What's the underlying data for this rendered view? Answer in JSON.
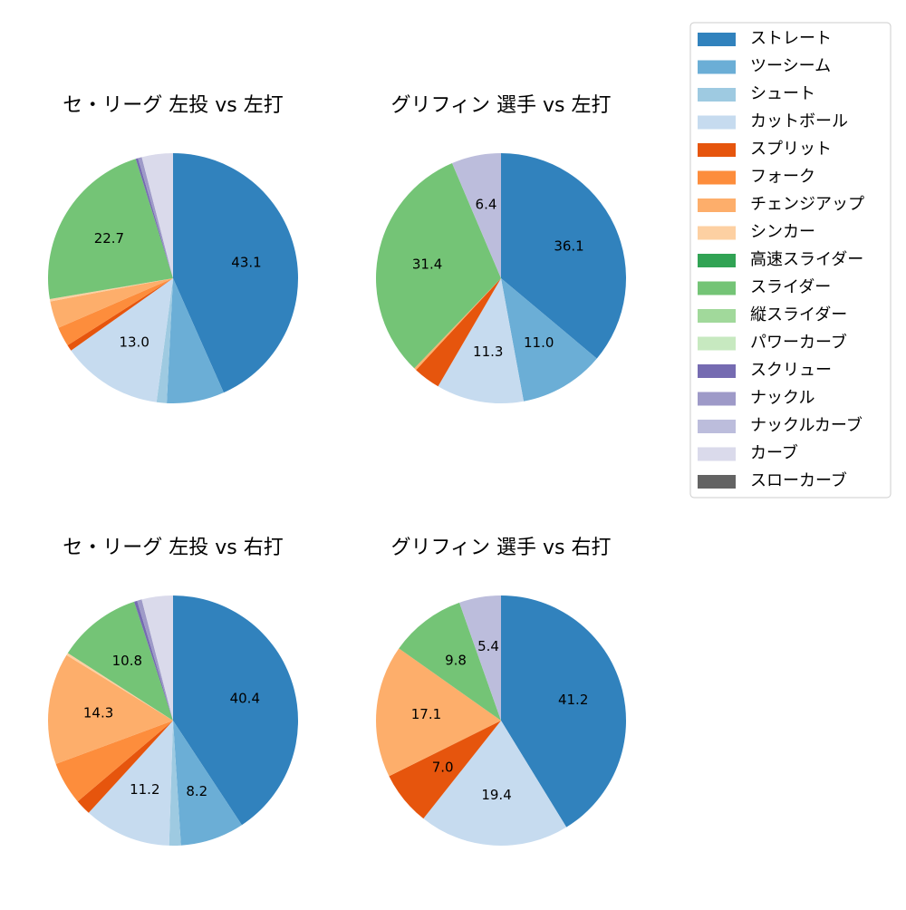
{
  "chart_data": [
    {
      "type": "pie",
      "title": "セ・リーグ 左投 vs 左打",
      "categories": [
        "ストレート",
        "ツーシーム",
        "シュート",
        "カットボール",
        "スプリット",
        "フォーク",
        "チェンジアップ",
        "シンカー",
        "高速スライダー",
        "スライダー",
        "縦スライダー",
        "パワーカーブ",
        "スクリュー",
        "ナックル",
        "ナックルカーブ",
        "カーブ",
        "スローカーブ"
      ],
      "colors": [
        "#3182bd",
        "#6baed6",
        "#9ecae1",
        "#c6dbef",
        "#e6550d",
        "#fd8d3c",
        "#fdae6b",
        "#fdd0a2",
        "#31a354",
        "#74c476",
        "#a1d99b",
        "#c7e9c0",
        "#756bb1",
        "#9e9ac8",
        "#bcbddc",
        "#dadaeb",
        "#636363"
      ],
      "values": [
        43.1,
        7.4,
        1.3,
        13.0,
        0.8,
        2.5,
        3.5,
        0.3,
        0,
        22.7,
        0,
        0,
        0.3,
        0.5,
        0,
        4.0,
        0
      ],
      "value_labels": [
        "43.1",
        null,
        null,
        "13.0",
        null,
        null,
        null,
        null,
        null,
        "22.7",
        null,
        null,
        null,
        null,
        null,
        null,
        null
      ]
    },
    {
      "type": "pie",
      "title": "グリフィン 選手 vs 左打",
      "categories": [
        "ストレート",
        "ツーシーム",
        "シュート",
        "カットボール",
        "スプリット",
        "フォーク",
        "チェンジアップ",
        "シンカー",
        "高速スライダー",
        "スライダー",
        "縦スライダー",
        "パワーカーブ",
        "スクリュー",
        "ナックル",
        "ナックルカーブ",
        "カーブ",
        "スローカーブ"
      ],
      "colors": [
        "#3182bd",
        "#6baed6",
        "#9ecae1",
        "#c6dbef",
        "#e6550d",
        "#fd8d3c",
        "#fdae6b",
        "#fdd0a2",
        "#31a354",
        "#74c476",
        "#a1d99b",
        "#c7e9c0",
        "#756bb1",
        "#9e9ac8",
        "#bcbddc",
        "#dadaeb",
        "#636363"
      ],
      "values": [
        36.1,
        11.0,
        0,
        11.3,
        3.5,
        0,
        0.3,
        0,
        0,
        31.4,
        0,
        0,
        0,
        0,
        6.4,
        0,
        0
      ],
      "value_labels": [
        "36.1",
        "11.0",
        null,
        "11.3",
        null,
        null,
        null,
        null,
        null,
        "31.4",
        null,
        null,
        null,
        null,
        "6.4",
        null,
        null
      ]
    },
    {
      "type": "pie",
      "title": "セ・リーグ 左投 vs 右打",
      "categories": [
        "ストレート",
        "ツーシーム",
        "シュート",
        "カットボール",
        "スプリット",
        "フォーク",
        "チェンジアップ",
        "シンカー",
        "高速スライダー",
        "スライダー",
        "縦スライダー",
        "パワーカーブ",
        "スクリュー",
        "ナックル",
        "ナックルカーブ",
        "カーブ",
        "スローカーブ"
      ],
      "colors": [
        "#3182bd",
        "#6baed6",
        "#9ecae1",
        "#c6dbef",
        "#e6550d",
        "#fd8d3c",
        "#fdae6b",
        "#fdd0a2",
        "#31a354",
        "#74c476",
        "#a1d99b",
        "#c7e9c0",
        "#756bb1",
        "#9e9ac8",
        "#bcbddc",
        "#dadaeb",
        "#636363"
      ],
      "values": [
        40.4,
        8.2,
        1.5,
        11.2,
        2.0,
        5.5,
        14.3,
        0.3,
        0,
        10.8,
        0,
        0,
        0.4,
        0.6,
        0,
        4.0,
        0
      ],
      "value_labels": [
        "40.4",
        "8.2",
        null,
        "11.2",
        null,
        null,
        "14.3",
        null,
        null,
        "10.8",
        null,
        null,
        null,
        null,
        null,
        null,
        null
      ]
    },
    {
      "type": "pie",
      "title": "グリフィン 選手 vs 右打",
      "categories": [
        "ストレート",
        "ツーシーム",
        "シュート",
        "カットボール",
        "スプリット",
        "フォーク",
        "チェンジアップ",
        "シンカー",
        "高速スライダー",
        "スライダー",
        "縦スライダー",
        "パワーカーブ",
        "スクリュー",
        "ナックル",
        "ナックルカーブ",
        "カーブ",
        "スローカーブ"
      ],
      "colors": [
        "#3182bd",
        "#6baed6",
        "#9ecae1",
        "#c6dbef",
        "#e6550d",
        "#fd8d3c",
        "#fdae6b",
        "#fdd0a2",
        "#31a354",
        "#74c476",
        "#a1d99b",
        "#c7e9c0",
        "#756bb1",
        "#9e9ac8",
        "#bcbddc",
        "#dadaeb",
        "#636363"
      ],
      "values": [
        41.2,
        0,
        0,
        19.4,
        7.0,
        0,
        17.1,
        0,
        0,
        9.8,
        0,
        0,
        0,
        0,
        5.4,
        0,
        0
      ],
      "value_labels": [
        "41.2",
        null,
        null,
        "19.4",
        "7.0",
        null,
        "17.1",
        null,
        null,
        "9.8",
        null,
        null,
        null,
        null,
        "5.4",
        null,
        null
      ]
    }
  ]
}
